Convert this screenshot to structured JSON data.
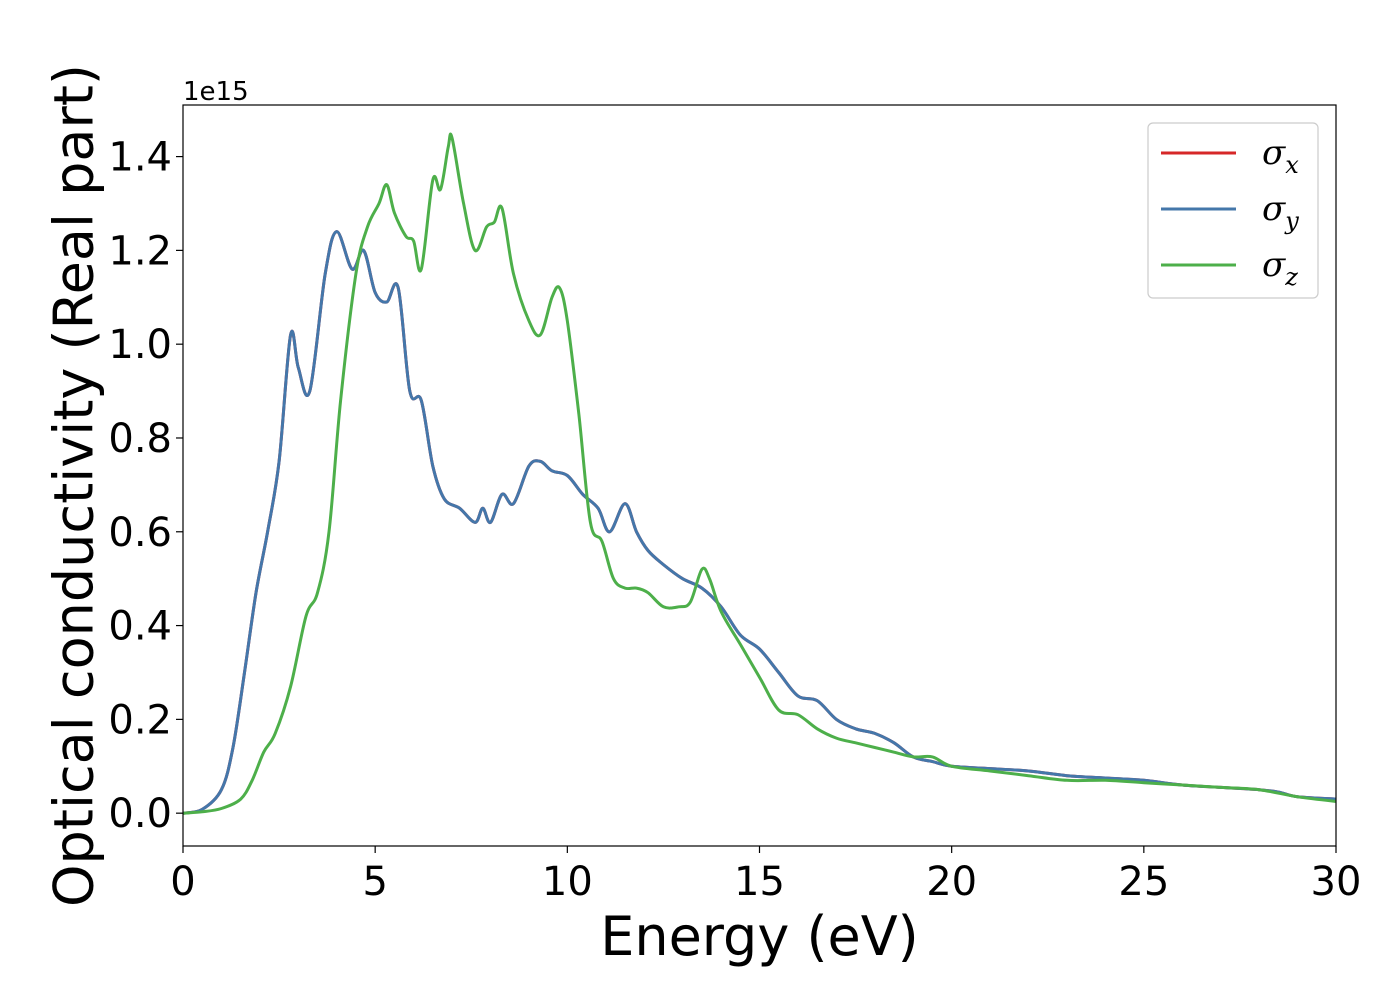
{
  "chart_data": {
    "type": "line",
    "xlabel": "Energy (eV)",
    "ylabel": "Optical conductivity (Real part)",
    "y_offset_text": "1e15",
    "xlim": [
      0,
      30
    ],
    "ylim": [
      -0.07,
      1.51
    ],
    "y_scale_factor": "1e15",
    "xticks": [
      0,
      5,
      10,
      15,
      20,
      25,
      30
    ],
    "xtick_labels": [
      "0",
      "5",
      "10",
      "15",
      "20",
      "25",
      "30"
    ],
    "yticks": [
      0.0,
      0.2,
      0.4,
      0.6,
      0.8,
      1.0,
      1.2,
      1.4
    ],
    "ytick_labels": [
      "0.0",
      "0.2",
      "0.4",
      "0.6",
      "0.8",
      "1.0",
      "1.2",
      "1.4"
    ],
    "grid": false,
    "legend_placement": "top-right",
    "series": [
      {
        "name": "σ",
        "subscript": "x",
        "color": "#d62728",
        "x": [
          0,
          0.5,
          1.0,
          1.3,
          1.6,
          1.9,
          2.2,
          2.5,
          2.8,
          3.0,
          3.3,
          3.7,
          4.0,
          4.4,
          4.7,
          5.0,
          5.3,
          5.6,
          5.9,
          6.2,
          6.5,
          6.8,
          7.2,
          7.6,
          7.8,
          8.0,
          8.3,
          8.6,
          9.0,
          9.3,
          9.6,
          10.0,
          10.4,
          10.8,
          11.1,
          11.5,
          11.8,
          12.1,
          12.5,
          13.0,
          13.5,
          14.0,
          14.5,
          15.0,
          15.5,
          16.0,
          16.5,
          17.0,
          17.5,
          18.0,
          18.5,
          19.0,
          19.5,
          20.0,
          21.0,
          22.0,
          23.0,
          24.0,
          25.0,
          26.0,
          27.0,
          28.0,
          28.5,
          29.0,
          30.0
        ],
        "values": [
          0.0,
          0.008,
          0.05,
          0.14,
          0.3,
          0.47,
          0.6,
          0.75,
          1.02,
          0.95,
          0.9,
          1.15,
          1.24,
          1.16,
          1.2,
          1.11,
          1.09,
          1.12,
          0.9,
          0.88,
          0.74,
          0.67,
          0.65,
          0.62,
          0.65,
          0.62,
          0.68,
          0.66,
          0.74,
          0.75,
          0.73,
          0.72,
          0.68,
          0.65,
          0.6,
          0.66,
          0.6,
          0.56,
          0.53,
          0.5,
          0.48,
          0.44,
          0.38,
          0.35,
          0.3,
          0.25,
          0.24,
          0.2,
          0.18,
          0.17,
          0.15,
          0.12,
          0.11,
          0.1,
          0.095,
          0.09,
          0.08,
          0.075,
          0.07,
          0.06,
          0.055,
          0.05,
          0.045,
          0.035,
          0.03
        ]
      },
      {
        "name": "σ",
        "subscript": "y",
        "color": "#4477aa",
        "x": [
          0,
          0.5,
          1.0,
          1.3,
          1.6,
          1.9,
          2.2,
          2.5,
          2.8,
          3.0,
          3.3,
          3.7,
          4.0,
          4.4,
          4.7,
          5.0,
          5.3,
          5.6,
          5.9,
          6.2,
          6.5,
          6.8,
          7.2,
          7.6,
          7.8,
          8.0,
          8.3,
          8.6,
          9.0,
          9.3,
          9.6,
          10.0,
          10.4,
          10.8,
          11.1,
          11.5,
          11.8,
          12.1,
          12.5,
          13.0,
          13.5,
          14.0,
          14.5,
          15.0,
          15.5,
          16.0,
          16.5,
          17.0,
          17.5,
          18.0,
          18.5,
          19.0,
          19.5,
          20.0,
          21.0,
          22.0,
          23.0,
          24.0,
          25.0,
          26.0,
          27.0,
          28.0,
          28.5,
          29.0,
          30.0
        ],
        "values": [
          0.0,
          0.008,
          0.05,
          0.14,
          0.3,
          0.47,
          0.6,
          0.75,
          1.02,
          0.95,
          0.9,
          1.15,
          1.24,
          1.16,
          1.2,
          1.11,
          1.09,
          1.12,
          0.9,
          0.88,
          0.74,
          0.67,
          0.65,
          0.62,
          0.65,
          0.62,
          0.68,
          0.66,
          0.74,
          0.75,
          0.73,
          0.72,
          0.68,
          0.65,
          0.6,
          0.66,
          0.6,
          0.56,
          0.53,
          0.5,
          0.48,
          0.44,
          0.38,
          0.35,
          0.3,
          0.25,
          0.24,
          0.2,
          0.18,
          0.17,
          0.15,
          0.12,
          0.11,
          0.1,
          0.095,
          0.09,
          0.08,
          0.075,
          0.07,
          0.06,
          0.055,
          0.05,
          0.045,
          0.035,
          0.03
        ]
      },
      {
        "name": "σ",
        "subscript": "z",
        "color": "#4daf4a",
        "x": [
          0,
          0.5,
          1.0,
          1.5,
          1.8,
          2.1,
          2.4,
          2.8,
          3.2,
          3.5,
          3.8,
          4.1,
          4.5,
          4.8,
          5.1,
          5.3,
          5.5,
          5.8,
          6.0,
          6.2,
          6.5,
          6.7,
          6.9,
          7.0,
          7.3,
          7.6,
          7.9,
          8.1,
          8.3,
          8.6,
          9.0,
          9.3,
          9.6,
          9.8,
          10.0,
          10.3,
          10.6,
          10.9,
          11.2,
          11.5,
          11.8,
          12.1,
          12.5,
          12.9,
          13.2,
          13.5,
          13.7,
          14.0,
          14.5,
          15.0,
          15.5,
          16.0,
          16.5,
          17.0,
          17.5,
          18.0,
          18.5,
          19.0,
          19.5,
          20.0,
          21.0,
          22.0,
          23.0,
          24.0,
          25.0,
          26.0,
          27.0,
          28.0,
          29.0,
          30.0
        ],
        "values": [
          0.0,
          0.003,
          0.01,
          0.03,
          0.07,
          0.13,
          0.17,
          0.27,
          0.42,
          0.47,
          0.6,
          0.88,
          1.15,
          1.25,
          1.3,
          1.34,
          1.28,
          1.23,
          1.22,
          1.16,
          1.35,
          1.33,
          1.42,
          1.44,
          1.3,
          1.2,
          1.25,
          1.26,
          1.29,
          1.15,
          1.05,
          1.02,
          1.1,
          1.12,
          1.05,
          0.85,
          0.62,
          0.58,
          0.5,
          0.48,
          0.48,
          0.47,
          0.44,
          0.44,
          0.45,
          0.52,
          0.5,
          0.43,
          0.36,
          0.29,
          0.22,
          0.21,
          0.18,
          0.16,
          0.15,
          0.14,
          0.13,
          0.12,
          0.12,
          0.1,
          0.09,
          0.08,
          0.07,
          0.07,
          0.065,
          0.06,
          0.055,
          0.05,
          0.035,
          0.025
        ]
      }
    ]
  }
}
